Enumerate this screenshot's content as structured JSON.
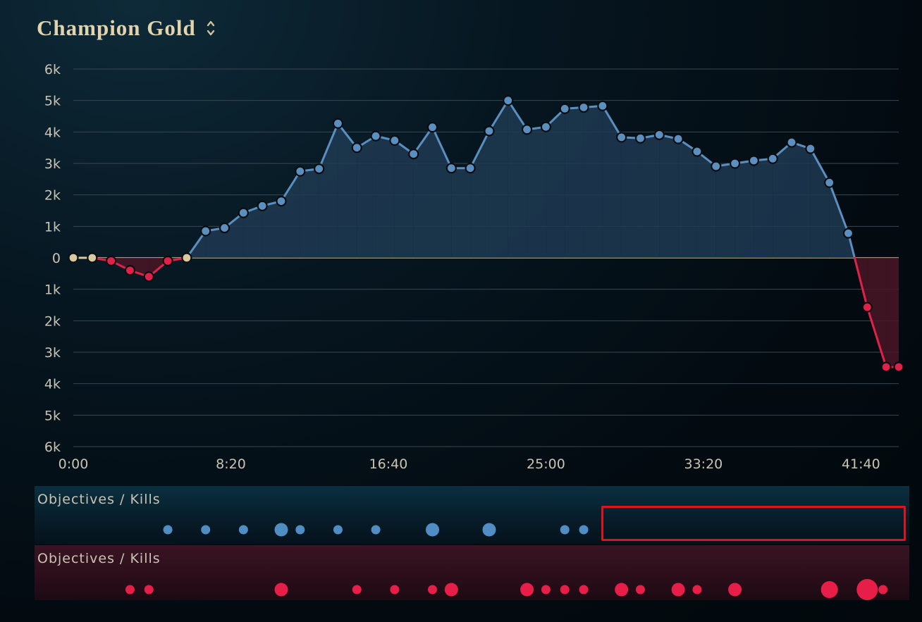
{
  "header": {
    "title": "Champion Gold"
  },
  "chart_data": {
    "type": "area",
    "title": "Champion Gold",
    "xlabel": "",
    "ylabel": "",
    "x_unit": "seconds",
    "x_ticks": [
      {
        "t": 0,
        "label": "0:00"
      },
      {
        "t": 500,
        "label": "8:20"
      },
      {
        "t": 1000,
        "label": "16:40"
      },
      {
        "t": 1500,
        "label": "25:00"
      },
      {
        "t": 2000,
        "label": "33:20"
      },
      {
        "t": 2500,
        "label": "41:40"
      }
    ],
    "y_ticks": [
      {
        "v": 6000,
        "label": "6k"
      },
      {
        "v": 5000,
        "label": "5k"
      },
      {
        "v": 4000,
        "label": "4k"
      },
      {
        "v": 3000,
        "label": "3k"
      },
      {
        "v": 2000,
        "label": "2k"
      },
      {
        "v": 1000,
        "label": "1k"
      },
      {
        "v": 0,
        "label": "0"
      },
      {
        "v": -1000,
        "label": "1k"
      },
      {
        "v": -2000,
        "label": "2k"
      },
      {
        "v": -3000,
        "label": "3k"
      },
      {
        "v": -4000,
        "label": "4k"
      },
      {
        "v": -5000,
        "label": "5k"
      },
      {
        "v": -6000,
        "label": "6k"
      }
    ],
    "xlim": [
      0,
      2620
    ],
    "ylim": [
      -6000,
      6000
    ],
    "grid": true,
    "colors": {
      "positive": "#5b8fc0",
      "negative": "#e0224a",
      "neutral": "#d8c9a0",
      "positive_fill": "#1e3a52",
      "negative_fill": "#4a1626"
    },
    "series": [
      {
        "x": [
          0,
          60,
          120,
          180,
          240,
          300,
          360,
          420,
          480,
          540,
          600,
          660,
          720,
          780,
          840,
          900,
          960,
          1020,
          1080,
          1140,
          1200,
          1260,
          1320,
          1380,
          1440,
          1500,
          1560,
          1620,
          1680,
          1740,
          1800,
          1860,
          1920,
          1980,
          2040,
          2100,
          2160,
          2220,
          2280,
          2340,
          2400,
          2460,
          2520,
          2580,
          2620
        ],
        "values": [
          0,
          0,
          -100,
          -400,
          -600,
          -100,
          0,
          850,
          950,
          1430,
          1650,
          1800,
          2750,
          2830,
          4270,
          3500,
          3870,
          3730,
          3300,
          4150,
          2850,
          2850,
          4030,
          5000,
          4080,
          4160,
          4740,
          4780,
          4830,
          3830,
          3800,
          3910,
          3780,
          3380,
          2910,
          3000,
          3090,
          3150,
          3670,
          3470,
          2390,
          780,
          -1570,
          -3470,
          -3470
        ]
      }
    ]
  },
  "panels": {
    "blue_label": "Objectives / Kills",
    "red_label": "Objectives / Kills",
    "blue_events": [
      {
        "t": 300,
        "size": "small"
      },
      {
        "t": 420,
        "size": "small"
      },
      {
        "t": 540,
        "size": "small"
      },
      {
        "t": 660,
        "size": "large"
      },
      {
        "t": 720,
        "size": "small"
      },
      {
        "t": 840,
        "size": "small"
      },
      {
        "t": 960,
        "size": "small"
      },
      {
        "t": 1140,
        "size": "large"
      },
      {
        "t": 1320,
        "size": "large"
      },
      {
        "t": 1560,
        "size": "small"
      },
      {
        "t": 1620,
        "size": "small"
      }
    ],
    "red_events": [
      {
        "t": 180,
        "size": "small"
      },
      {
        "t": 240,
        "size": "small"
      },
      {
        "t": 660,
        "size": "large"
      },
      {
        "t": 900,
        "size": "small"
      },
      {
        "t": 1020,
        "size": "small"
      },
      {
        "t": 1140,
        "size": "small"
      },
      {
        "t": 1200,
        "size": "large"
      },
      {
        "t": 1440,
        "size": "large"
      },
      {
        "t": 1500,
        "size": "small"
      },
      {
        "t": 1560,
        "size": "small"
      },
      {
        "t": 1620,
        "size": "small"
      },
      {
        "t": 1740,
        "size": "large"
      },
      {
        "t": 1800,
        "size": "small"
      },
      {
        "t": 1920,
        "size": "large"
      },
      {
        "t": 1980,
        "size": "small"
      },
      {
        "t": 2100,
        "size": "large"
      },
      {
        "t": 2400,
        "size": "xlarge"
      },
      {
        "t": 2520,
        "size": "xxlarge"
      },
      {
        "t": 2570,
        "size": "small"
      }
    ]
  }
}
